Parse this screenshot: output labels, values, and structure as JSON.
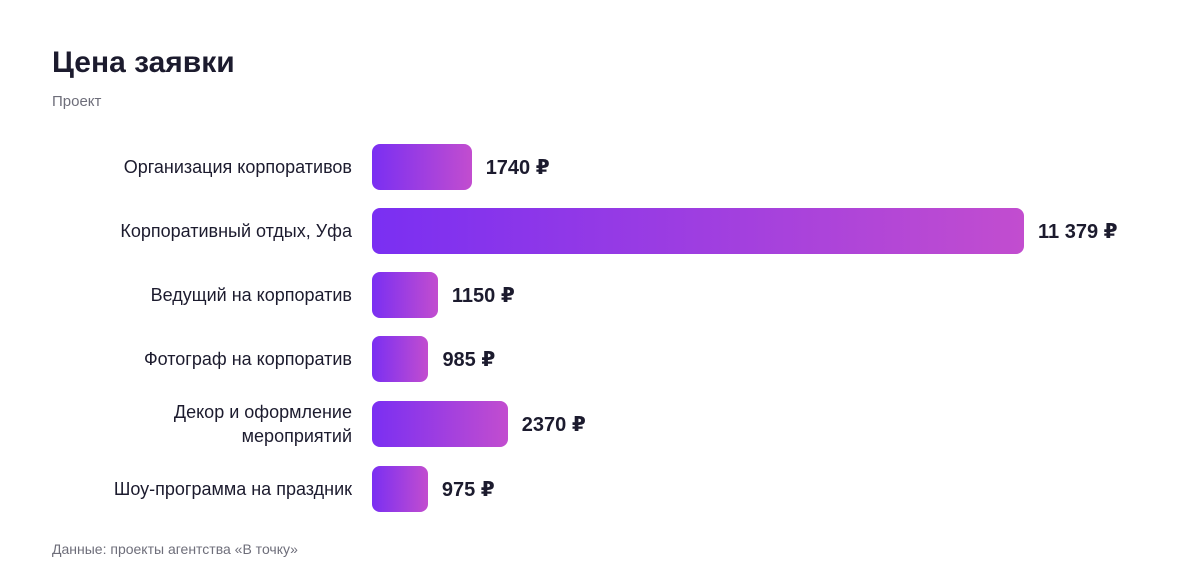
{
  "chart_data": {
    "type": "bar",
    "orientation": "horizontal",
    "title": "Цена заявки",
    "subtitle": "Проект",
    "categories": [
      "Организация корпоративов",
      "Корпоративный отдых, Уфа",
      "Ведущий на корпоратив",
      "Фотограф на корпоратив",
      "Декор и оформление мероприятий",
      "Шоу-программа на праздник"
    ],
    "values": [
      1740,
      11379,
      1150,
      985,
      2370,
      975
    ],
    "value_labels": [
      "1740 ₽",
      "11 379 ₽",
      "1150 ₽",
      "985 ₽",
      "2370 ₽",
      "975 ₽"
    ],
    "color": [
      "#7a2ff2",
      "#c24dcf"
    ],
    "source": "Данные: проекты агентства «В точку»"
  }
}
